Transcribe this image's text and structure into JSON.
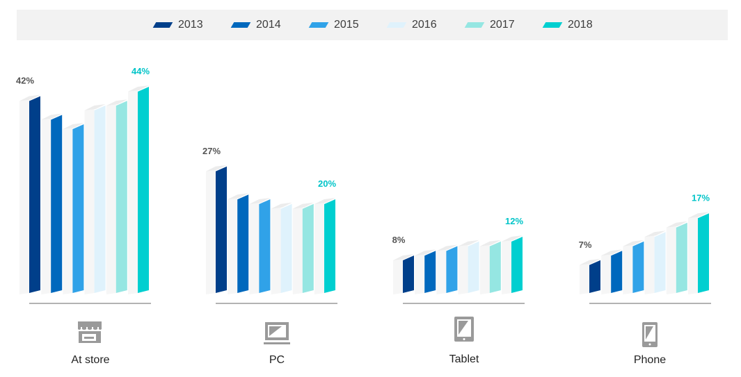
{
  "chart_data": {
    "type": "bar",
    "title": "",
    "xlabel": "",
    "ylabel": "",
    "ylim": [
      0,
      44
    ],
    "grid": false,
    "legend_position": "top",
    "categories": [
      "At store",
      "PC",
      "Tablet",
      "Phone"
    ],
    "series": [
      {
        "name": "2013",
        "color": "#003f8a",
        "values": [
          42,
          27,
          8,
          7
        ]
      },
      {
        "name": "2014",
        "color": "#0068bd",
        "values": [
          38,
          21,
          9,
          9
        ]
      },
      {
        "name": "2015",
        "color": "#30a2e8",
        "values": [
          36,
          20,
          10,
          11
        ]
      },
      {
        "name": "2016",
        "color": "#dff2fc",
        "values": [
          40,
          19,
          11,
          13
        ]
      },
      {
        "name": "2017",
        "color": "#95e6e2",
        "values": [
          41,
          19,
          11,
          15
        ]
      },
      {
        "name": "2018",
        "color": "#00cfd0",
        "values": [
          44,
          20,
          12,
          17
        ]
      }
    ],
    "data_labels": [
      {
        "category": "At store",
        "series": "2013",
        "text": "42%",
        "color": "#555555"
      },
      {
        "category": "At store",
        "series": "2018",
        "text": "44%",
        "color": "#00c4c8"
      },
      {
        "category": "PC",
        "series": "2013",
        "text": "27%",
        "color": "#555555"
      },
      {
        "category": "PC",
        "series": "2018",
        "text": "20%",
        "color": "#00c4c8"
      },
      {
        "category": "Tablet",
        "series": "2013",
        "text": "8%",
        "color": "#555555"
      },
      {
        "category": "Tablet",
        "series": "2018",
        "text": "12%",
        "color": "#00c4c8"
      },
      {
        "category": "Phone",
        "series": "2013",
        "text": "7%",
        "color": "#555555"
      },
      {
        "category": "Phone",
        "series": "2018",
        "text": "17%",
        "color": "#00c4c8"
      }
    ],
    "category_icons": [
      "store-icon",
      "pc-icon",
      "tablet-icon",
      "phone-icon"
    ]
  }
}
